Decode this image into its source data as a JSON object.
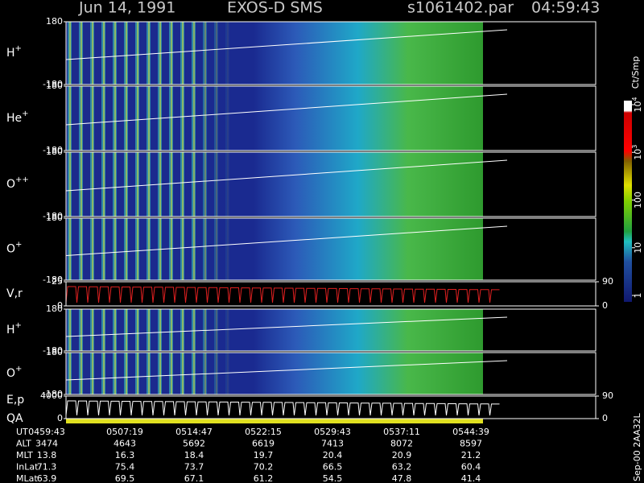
{
  "chart_data": {
    "type": "spectrogram",
    "header": {
      "date": "Jun 14, 1991",
      "instrument": "EXOS-D SMS",
      "file": "s1061402.par",
      "time": "04:59:43"
    },
    "panels": [
      {
        "name": "H",
        "charge": "+",
        "ylim": [
          -180,
          180
        ],
        "yticks": [
          -180,
          180
        ]
      },
      {
        "name": "He",
        "charge": "+",
        "ylim": [
          -180,
          180
        ],
        "yticks": [
          -180,
          180
        ]
      },
      {
        "name": "O",
        "charge": "++",
        "ylim": [
          -180,
          180
        ],
        "yticks": [
          -180,
          180
        ]
      },
      {
        "name": "O",
        "charge": "+",
        "ylim": [
          -180,
          180
        ],
        "yticks": [
          -180,
          180
        ]
      },
      {
        "name": "V,r",
        "ylim": [
          0,
          25
        ],
        "yticks": [
          0,
          25
        ],
        "y2lim": [
          0,
          90
        ],
        "y2ticks": [
          0,
          90
        ]
      },
      {
        "name": "H",
        "charge": "+",
        "ylim": [
          -180,
          180
        ],
        "yticks": [
          -180,
          180
        ]
      },
      {
        "name": "O",
        "charge": "+",
        "ylim": [
          -180,
          180
        ],
        "yticks": [
          -180,
          180
        ]
      },
      {
        "name": "E,p",
        "subname": "QA",
        "ylim": [
          0,
          4000
        ],
        "yticks": [
          0,
          4000
        ],
        "y2lim": [
          0,
          90
        ],
        "y2ticks": [
          0,
          90
        ]
      }
    ],
    "colorbar": {
      "label": "Ct/Smp",
      "log": true,
      "lim": [
        1,
        10000
      ],
      "ticks": [
        {
          "value": 10000,
          "base": "10",
          "exponent": "4"
        },
        {
          "value": 1000,
          "base": "10",
          "exponent": "3"
        },
        100,
        10,
        1
      ]
    },
    "footnote": "Sep-00 2AA32L",
    "table": {
      "rows": [
        [
          "UT",
          "0459:43",
          "0507:19",
          "0514:47",
          "0522:15",
          "0529:43",
          "0537:11",
          "0544:39"
        ],
        [
          "ALT",
          "3474",
          "4643",
          "5692",
          "6619",
          "7413",
          "8072",
          "8597"
        ],
        [
          "MLT",
          "13.8",
          "16.3",
          "18.4",
          "19.7",
          "20.4",
          "20.9",
          "21.2"
        ],
        [
          "InLat",
          "71.3",
          "75.4",
          "73.7",
          "70.2",
          "66.5",
          "63.2",
          "60.4"
        ],
        [
          "MLat",
          "63.9",
          "69.5",
          "67.1",
          "61.2",
          "54.5",
          "47.8",
          "41.4"
        ]
      ]
    }
  }
}
